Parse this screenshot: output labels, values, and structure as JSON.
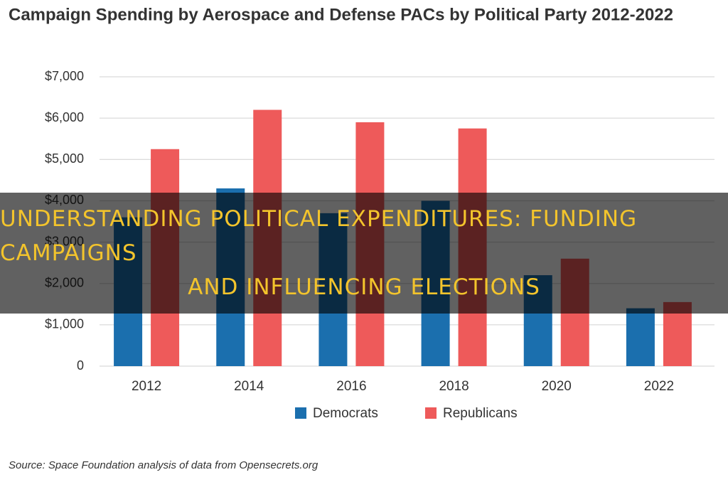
{
  "chart_data": {
    "type": "bar",
    "title": "Campaign Spending by Aerospace and Defense PACs by Political Party 2012-2022",
    "categories": [
      "2012",
      "2014",
      "2016",
      "2018",
      "2020",
      "2022"
    ],
    "series": [
      {
        "name": "Democrats",
        "color": "#1b6fae",
        "values": [
          3600,
          4300,
          3700,
          4000,
          2200,
          1400
        ]
      },
      {
        "name": "Republicans",
        "color": "#ee5a5a",
        "values": [
          5250,
          6200,
          5900,
          5750,
          2600,
          1550
        ]
      }
    ],
    "ylim": [
      0,
      7000
    ],
    "yticks": [
      0,
      {
        "value": 1000,
        "label": "$1,000"
      },
      {
        "value": 2000,
        "label": "$2,000"
      },
      {
        "value": 3000,
        "label": "$3,000"
      },
      {
        "value": 4000,
        "label": "$4,000"
      },
      {
        "value": 5000,
        "label": "$5,000"
      },
      {
        "value": 6000,
        "label": "$6,000"
      },
      {
        "value": 7000,
        "label": "$7,000"
      }
    ],
    "grid": true,
    "legend": "bottom",
    "source": "Source: Space Foundation analysis of data from Opensecrets.org",
    "headline": [
      "UNDERSTANDING POLITICAL EXPENDITURES: FUNDING CAMPAIGNS",
      "AND INFLUENCING ELECTIONS"
    ]
  }
}
